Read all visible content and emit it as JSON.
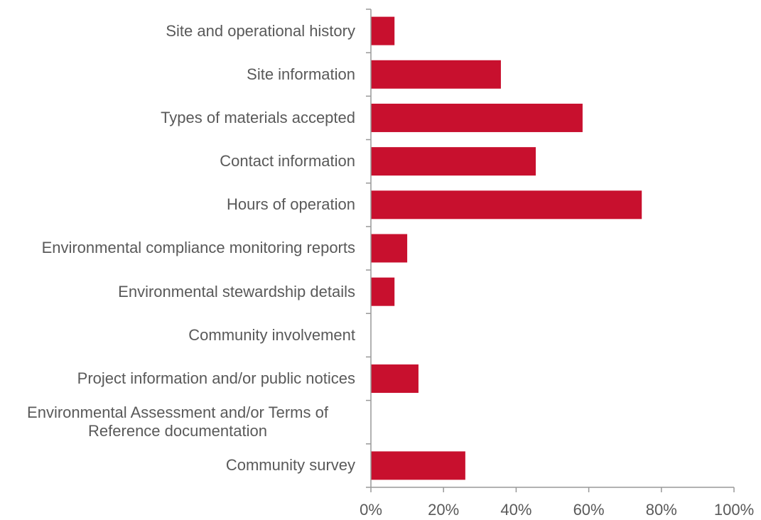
{
  "chart_data": {
    "type": "bar",
    "orientation": "horizontal",
    "categories": [
      "Site and operational history",
      "Site information",
      "Types of materials accepted",
      "Contact information",
      "Hours of operation",
      "Environmental compliance monitoring reports",
      "Environmental stewardship details",
      "Community involvement",
      "Project information and/or public notices",
      "Environmental Assessment and/or Terms of Reference documentation",
      "Community survey"
    ],
    "values": [
      6.5,
      35.8,
      58.3,
      45.4,
      74.6,
      10,
      6.5,
      0,
      13.1,
      0,
      26
    ],
    "color": "#c8102e",
    "xlim": [
      0,
      100
    ],
    "xticks": [
      {
        "value": 0,
        "label": "0%"
      },
      {
        "value": 20,
        "label": "20%"
      },
      {
        "value": 40,
        "label": "40%"
      },
      {
        "value": 60,
        "label": "60%"
      },
      {
        "value": 80,
        "label": "80%"
      },
      {
        "value": 100,
        "label": "100%"
      }
    ],
    "grid": false
  }
}
